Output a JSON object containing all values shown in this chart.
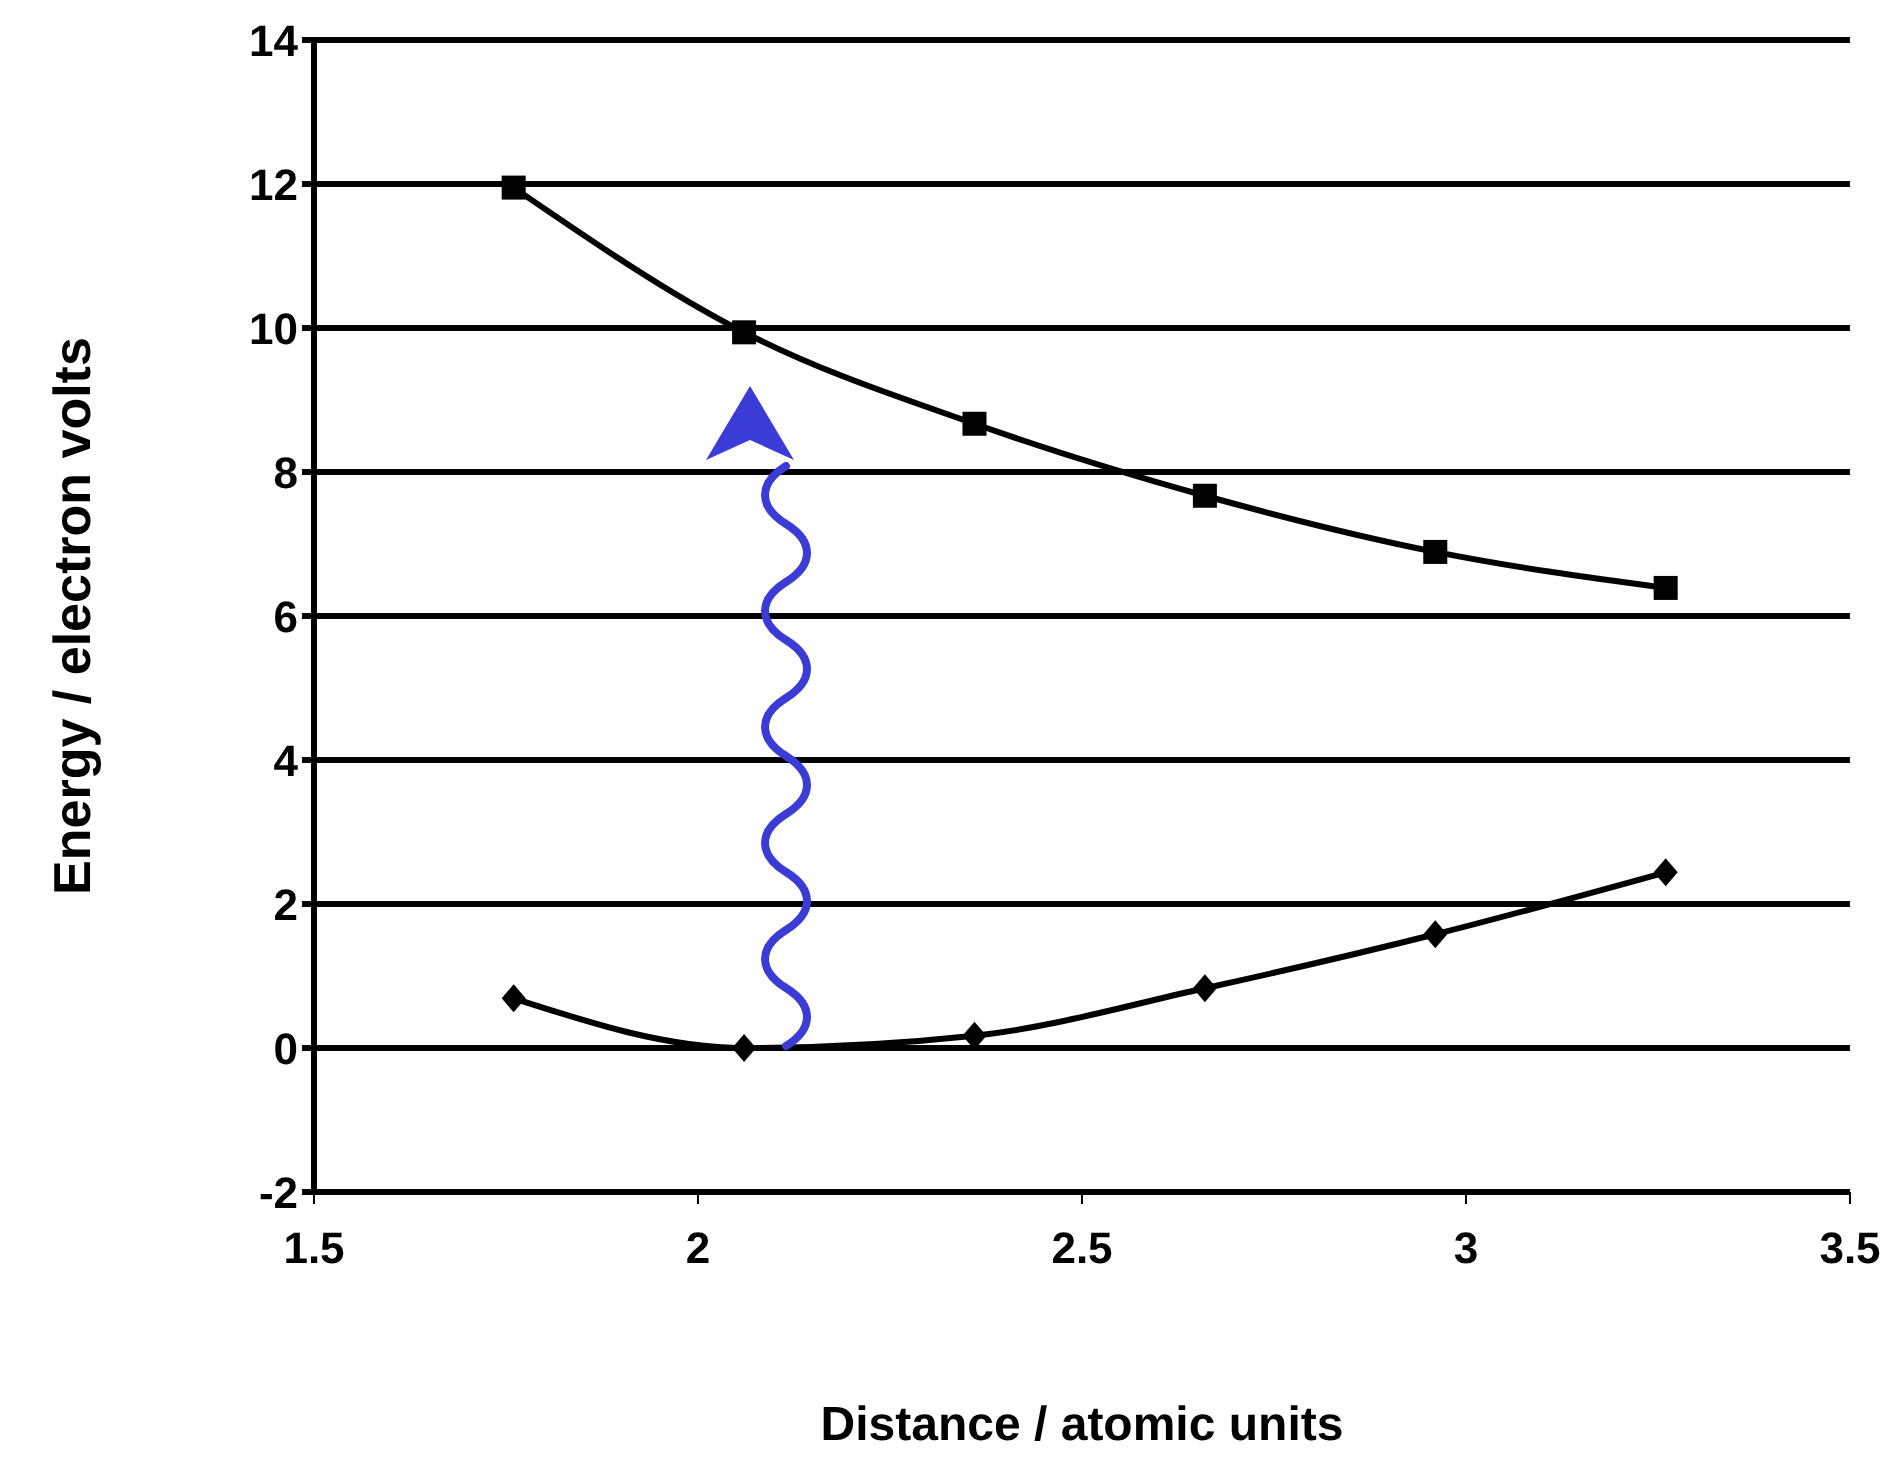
{
  "chart_data": {
    "type": "line",
    "xlabel": "Distance / atomic units",
    "ylabel": "Energy / electron volts",
    "xlim": [
      1.5,
      3.5
    ],
    "xticks": [
      1.5,
      2,
      2.5,
      3,
      3.5
    ],
    "ylim": [
      -2,
      14
    ],
    "yticks": [
      -2,
      0,
      2,
      4,
      6,
      8,
      10,
      12,
      14
    ],
    "grid": "y",
    "legend": false,
    "line_style": "solid",
    "series": [
      {
        "color": "#000000",
        "marker": "square",
        "x": [
          1.76,
          2.06,
          2.36,
          2.66,
          2.96,
          3.26
        ],
        "values": [
          11.95,
          9.94,
          8.67,
          7.67,
          6.89,
          6.39
        ]
      },
      {
        "color": "#000000",
        "marker": "diamond",
        "x": [
          1.76,
          2.06,
          2.36,
          2.66,
          2.96,
          3.26
        ],
        "values": [
          0.69,
          0,
          0.17,
          0.83,
          1.58,
          2.44
        ]
      }
    ]
  }
}
